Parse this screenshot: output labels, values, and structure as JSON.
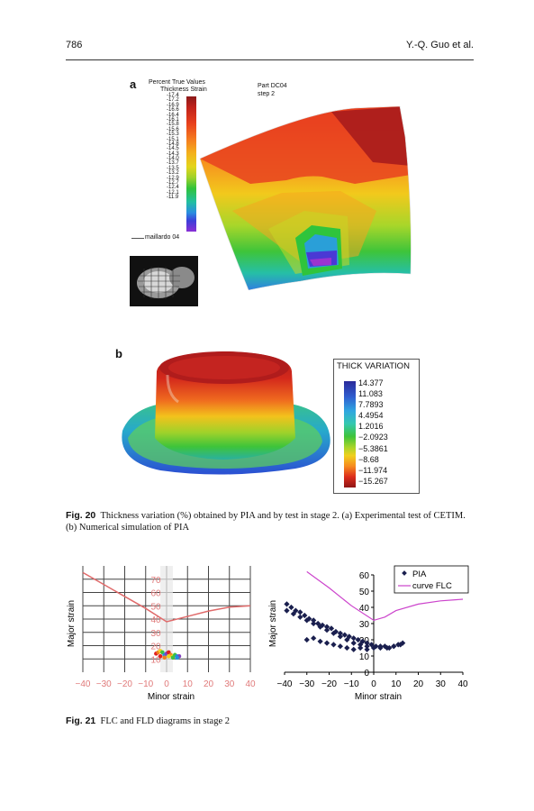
{
  "header": {
    "page_number": "786",
    "authors": "Y.-Q. Guo et al."
  },
  "fig20": {
    "panel_a": {
      "label": "a",
      "legend_title_1": "Percent True Values",
      "legend_title_2": "Thickness Strain",
      "legend_values": [
        "-17.4",
        "-17.2",
        "-16.9",
        "-16.6",
        "-16.4",
        "-16.1",
        "-15.8",
        "-15.6",
        "-15.3",
        "-15.1",
        "-14.8",
        "-14.5",
        "-14.3",
        "-14.0",
        "-13.7",
        "-13.5",
        "-13.2",
        "-12.9",
        "-12.7",
        "-12.4",
        "-12.1",
        "-11.9"
      ],
      "part": "Part  DC04",
      "step": "step 2",
      "source": "maillardo 04"
    },
    "panel_b": {
      "label": "b",
      "legend_title": "THICK VARIATION",
      "legend_values": [
        "14.377",
        "11.083",
        "7.7893",
        "4.4954",
        "1.2016",
        "−2.0923",
        "−5.3861",
        "−8.68",
        "−11.974",
        "−15.267"
      ]
    },
    "caption_label": "Fig. 20",
    "caption_text": "Thickness variation (%) obtained by PIA and by test in stage 2. (a) Experimental test of CETIM. (b) Numerical simulation of PIA",
    "caption_parts": {
      "a": "a",
      "b": "b"
    }
  },
  "fig21": {
    "caption_label": "Fig. 21",
    "caption_text": "FLC and FLD diagrams in stage 2",
    "colors": {
      "flc_line": "#e06a6a",
      "flc_curve": "#cc44cc",
      "pia_points": "#1a1f4e",
      "grid": "#444444"
    }
  },
  "chart_data": [
    {
      "type": "line",
      "xlabel": "Minor strain",
      "ylabel": "Major strain",
      "xlim": [
        -40,
        40
      ],
      "ylim": [
        0,
        80
      ],
      "x_ticks": [
        "−40",
        "−30",
        "−20",
        "−10",
        "0",
        "10",
        "20",
        "30",
        "40"
      ],
      "y_ticks": [
        "70",
        "60",
        "50",
        "40",
        "30",
        "20",
        "10"
      ],
      "grid": true,
      "series": [
        {
          "x": [
            -40,
            -30,
            -20,
            -10,
            0,
            10,
            20,
            30,
            40
          ],
          "y": [
            75,
            66,
            57,
            48,
            38,
            42,
            46,
            49,
            50
          ]
        }
      ],
      "scatter_points": {
        "x": [
          -5,
          -4,
          -3,
          -2,
          -1,
          0,
          1,
          2,
          3,
          4,
          5,
          6,
          -3,
          -1,
          1,
          3,
          5
        ],
        "y": [
          14,
          15,
          16,
          15,
          13,
          14,
          15,
          13,
          12,
          13,
          12,
          12,
          12,
          11,
          12,
          11,
          11
        ]
      }
    },
    {
      "type": "scatter",
      "xlabel": "Minor strain",
      "ylabel": "Major strain",
      "xlim": [
        -40,
        40
      ],
      "ylim": [
        0,
        60
      ],
      "x_ticks": [
        "−40",
        "−30",
        "−20",
        "−10",
        "0",
        "10",
        "20",
        "30",
        "40"
      ],
      "y_ticks": [
        "60",
        "50",
        "40",
        "30",
        "20",
        "10",
        "0"
      ],
      "legend": {
        "placement": "top-right",
        "entries": [
          "PIA",
          "curve FLC"
        ]
      },
      "series": [
        {
          "name": "curve FLC",
          "x": [
            -30,
            -20,
            -10,
            0,
            5,
            10,
            20,
            30,
            40
          ],
          "y": [
            62,
            52,
            41,
            32,
            34,
            38,
            42,
            44,
            45
          ]
        },
        {
          "name": "PIA",
          "x": [
            -39,
            -37,
            -35,
            -33,
            -31,
            -29,
            -27,
            -25,
            -23,
            -21,
            -19,
            -17,
            -15,
            -13,
            -11,
            -9,
            -7,
            -5,
            -3,
            -1,
            1,
            3,
            5,
            7,
            9,
            11,
            13,
            -39,
            -36,
            -33,
            -30,
            -27,
            -24,
            -21,
            -18,
            -15,
            -12,
            -9,
            -6,
            -3,
            0,
            3,
            6,
            9,
            12,
            -30,
            -27,
            -24,
            -21,
            -18,
            -15,
            -12,
            -9,
            -6,
            -3
          ],
          "y": [
            42,
            40,
            38,
            37,
            35,
            33,
            32,
            30,
            29,
            28,
            27,
            25,
            24,
            23,
            22,
            21,
            20,
            19,
            18,
            17,
            16,
            16,
            16,
            15,
            16,
            17,
            18,
            38,
            36,
            34,
            32,
            30,
            28,
            26,
            24,
            22,
            20,
            18,
            17,
            16,
            15,
            15,
            15,
            16,
            17,
            20,
            21,
            19,
            18,
            17,
            16,
            15,
            14,
            15,
            14
          ]
        }
      ]
    }
  ]
}
